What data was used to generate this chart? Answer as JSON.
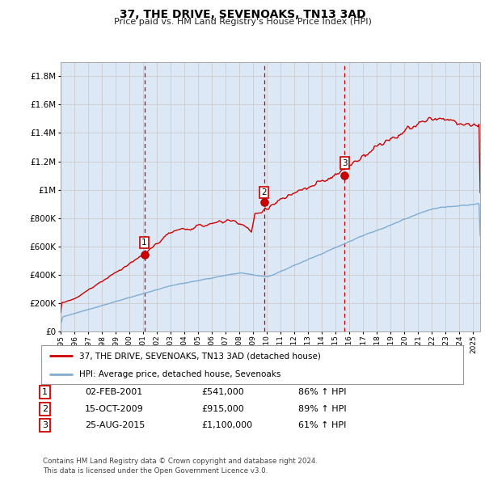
{
  "title": "37, THE DRIVE, SEVENOAKS, TN13 3AD",
  "subtitle": "Price paid vs. HM Land Registry's House Price Index (HPI)",
  "ylim": [
    0,
    1900000
  ],
  "xlim_start": 1995.0,
  "xlim_end": 2025.5,
  "sale_dates": [
    2001.085,
    2009.79,
    2015.645
  ],
  "sale_prices": [
    541000,
    915000,
    1100000
  ],
  "sale_labels": [
    "1",
    "2",
    "3"
  ],
  "sale_color": "#cc0000",
  "hpi_color": "#7eadd4",
  "vline_color": "#cc0000",
  "legend_items": [
    "37, THE DRIVE, SEVENOAKS, TN13 3AD (detached house)",
    "HPI: Average price, detached house, Sevenoaks"
  ],
  "table_data": [
    [
      "1",
      "02-FEB-2001",
      "£541,000",
      "86% ↑ HPI"
    ],
    [
      "2",
      "15-OCT-2009",
      "£915,000",
      "89% ↑ HPI"
    ],
    [
      "3",
      "25-AUG-2015",
      "£1,100,000",
      "61% ↑ HPI"
    ]
  ],
  "footer": "Contains HM Land Registry data © Crown copyright and database right 2024.\nThis data is licensed under the Open Government Licence v3.0.",
  "background_color": "#ffffff",
  "grid_color": "#cccccc",
  "plot_bg_color": "#dce8f5"
}
